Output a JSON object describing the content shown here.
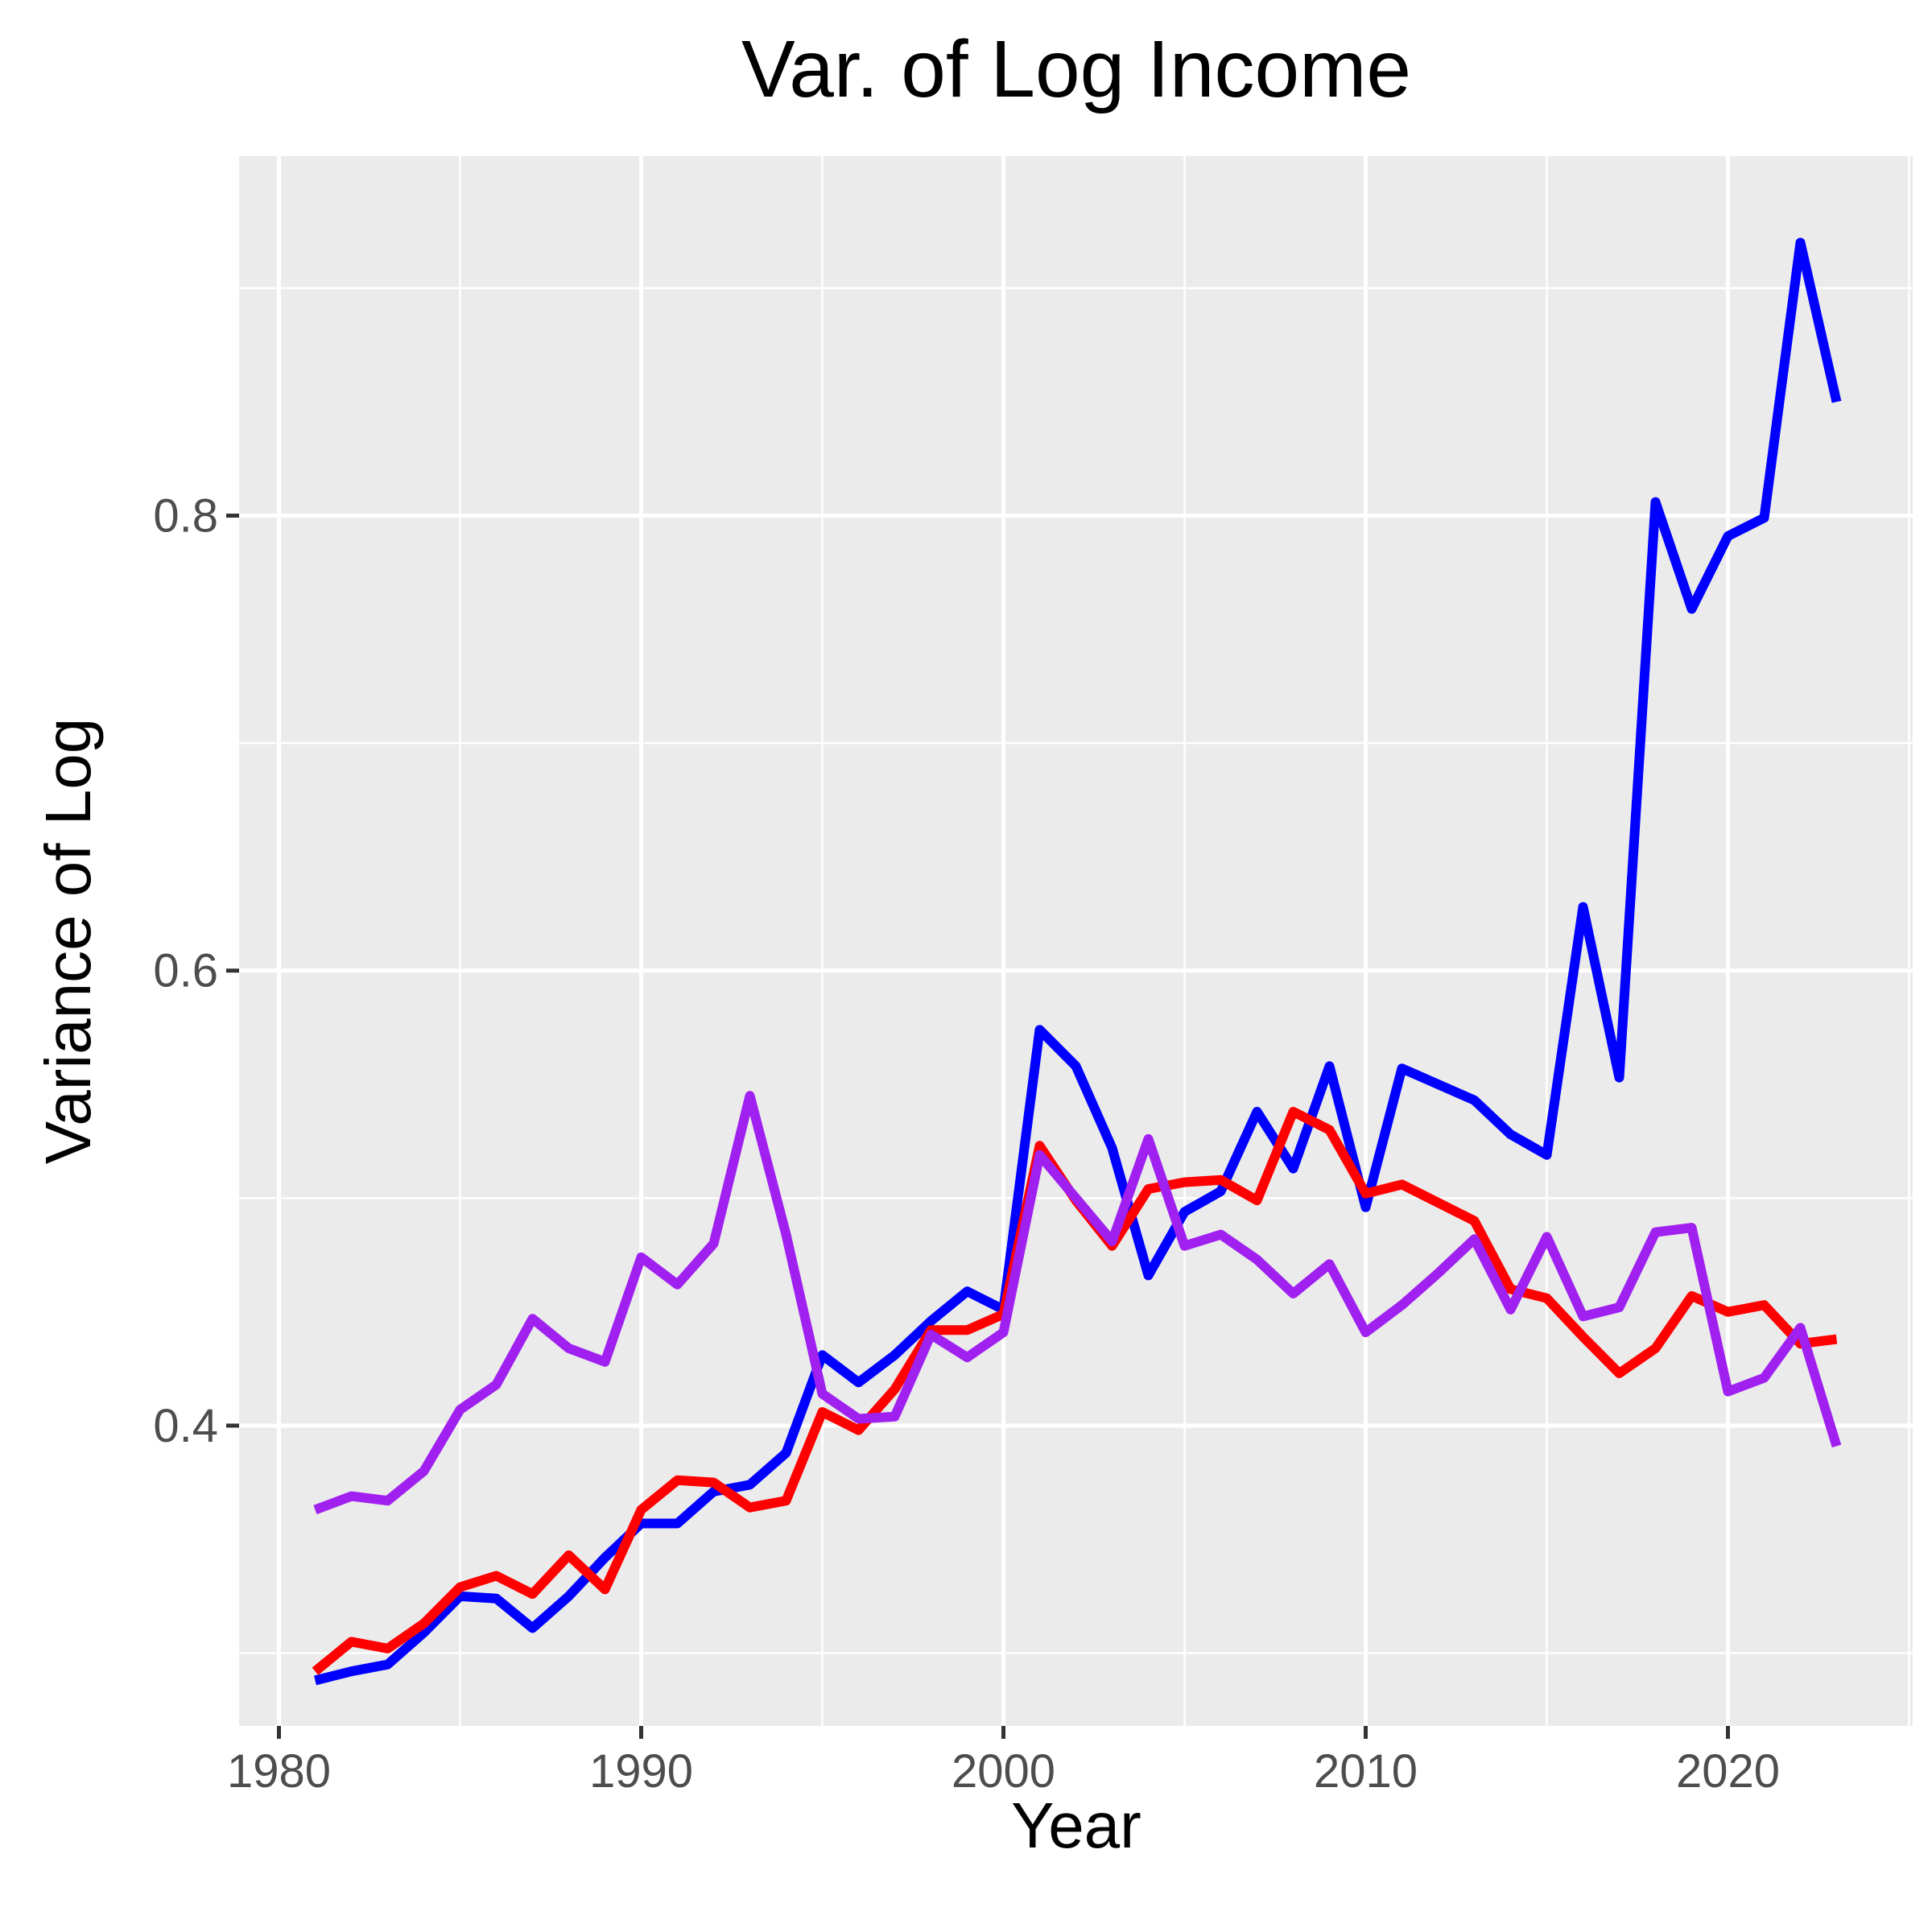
{
  "colors": {
    "panel_background": "#ebebeb",
    "grid": "#ffffff",
    "tick_label": "#4d4d4d",
    "title": "#000000"
  },
  "chart_data": {
    "type": "line",
    "title": "Var. of Log Income",
    "xlabel": "Year",
    "ylabel": "Variance of Log",
    "xlim": [
      1978.9,
      2025.1
    ],
    "ylim": [
      0.268,
      0.958
    ],
    "x_ticks": [
      1980,
      1990,
      2000,
      2010,
      2020
    ],
    "x_tick_labels": [
      "1980",
      "1990",
      "2000",
      "2010",
      "2020"
    ],
    "x_minor_ticks": [
      1985,
      1995,
      2005,
      2015,
      2025
    ],
    "y_ticks": [
      0.4,
      0.6,
      0.8
    ],
    "y_tick_labels": [
      "0.4",
      "0.6",
      "0.8"
    ],
    "y_minor_ticks": [
      0.3,
      0.5,
      0.7,
      0.9
    ],
    "grid": true,
    "legend": "none",
    "x": [
      1981,
      1982,
      1983,
      1984,
      1985,
      1986,
      1987,
      1988,
      1989,
      1990,
      1991,
      1992,
      1993,
      1994,
      1995,
      1996,
      1997,
      1998,
      1999,
      2000,
      2001,
      2002,
      2003,
      2004,
      2005,
      2006,
      2007,
      2008,
      2009,
      2010,
      2011,
      2012,
      2013,
      2014,
      2015,
      2016,
      2017,
      2018,
      2019,
      2020,
      2021,
      2022,
      2023
    ],
    "series": [
      {
        "color": "#0000ff",
        "values": [
          0.288,
          0.292,
          0.295,
          0.309,
          0.325,
          0.324,
          0.311,
          0.325,
          0.342,
          0.357,
          0.357,
          0.371,
          0.374,
          0.388,
          0.431,
          0.419,
          0.431,
          0.446,
          0.459,
          0.451,
          0.574,
          0.558,
          0.522,
          0.466,
          0.494,
          0.503,
          0.538,
          0.513,
          0.558,
          0.496,
          0.557,
          0.55,
          0.543,
          0.528,
          0.519,
          0.628,
          0.553,
          0.806,
          0.759,
          0.791,
          0.799,
          0.92,
          0.85
        ]
      },
      {
        "color": "#ff0000",
        "values": [
          0.292,
          0.305,
          0.302,
          0.313,
          0.329,
          0.334,
          0.326,
          0.343,
          0.328,
          0.363,
          0.376,
          0.375,
          0.364,
          0.367,
          0.406,
          0.398,
          0.416,
          0.442,
          0.442,
          0.449,
          0.523,
          0.499,
          0.479,
          0.504,
          0.507,
          0.508,
          0.499,
          0.538,
          0.53,
          0.502,
          0.506,
          0.498,
          0.49,
          0.46,
          0.456,
          0.439,
          0.423,
          0.434,
          0.457,
          0.45,
          0.453,
          0.436,
          0.438
        ]
      },
      {
        "color": "#a020f0",
        "values": [
          0.363,
          0.369,
          0.367,
          0.38,
          0.407,
          0.418,
          0.447,
          0.434,
          0.428,
          0.474,
          0.462,
          0.48,
          0.545,
          0.484,
          0.414,
          0.403,
          0.404,
          0.44,
          0.43,
          0.441,
          0.519,
          0.5,
          0.481,
          0.526,
          0.479,
          0.484,
          0.473,
          0.458,
          0.471,
          0.441,
          0.453,
          0.467,
          0.482,
          0.451,
          0.483,
          0.448,
          0.452,
          0.485,
          0.487,
          0.415,
          0.421,
          0.443,
          0.391
        ]
      }
    ]
  }
}
